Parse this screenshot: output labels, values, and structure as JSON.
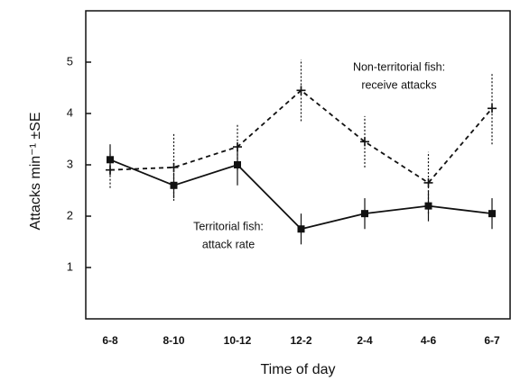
{
  "chart_data": {
    "type": "line",
    "xlabel": "Time of day",
    "ylabel": "Attacks min⁻¹ ±SE",
    "categories": [
      "6-8",
      "8-10",
      "10-12",
      "12-2",
      "2-4",
      "4-6",
      "6-7"
    ],
    "series": [
      {
        "color": "#111111",
        "dash": false,
        "marker": "square",
        "values": [
          3.1,
          2.6,
          3.0,
          1.75,
          2.05,
          2.2,
          2.05
        ],
        "errors": [
          0.3,
          0.25,
          0.4,
          0.3,
          0.3,
          0.3,
          0.3
        ]
      },
      {
        "color": "#111111",
        "dash": true,
        "marker": "plus",
        "values": [
          2.9,
          2.95,
          3.35,
          4.45,
          3.45,
          2.65,
          4.1
        ],
        "errors": [
          0.35,
          0.65,
          0.45,
          0.6,
          0.5,
          0.6,
          0.7
        ]
      }
    ],
    "annotations": [
      {
        "lines": [
          "Non-territorial fish:",
          "receive attacks"
        ]
      },
      {
        "lines": [
          "Territorial fish:",
          "attack rate"
        ]
      }
    ],
    "ylim": [
      0,
      6
    ],
    "yticks": [
      1,
      2,
      3,
      4,
      5
    ]
  }
}
